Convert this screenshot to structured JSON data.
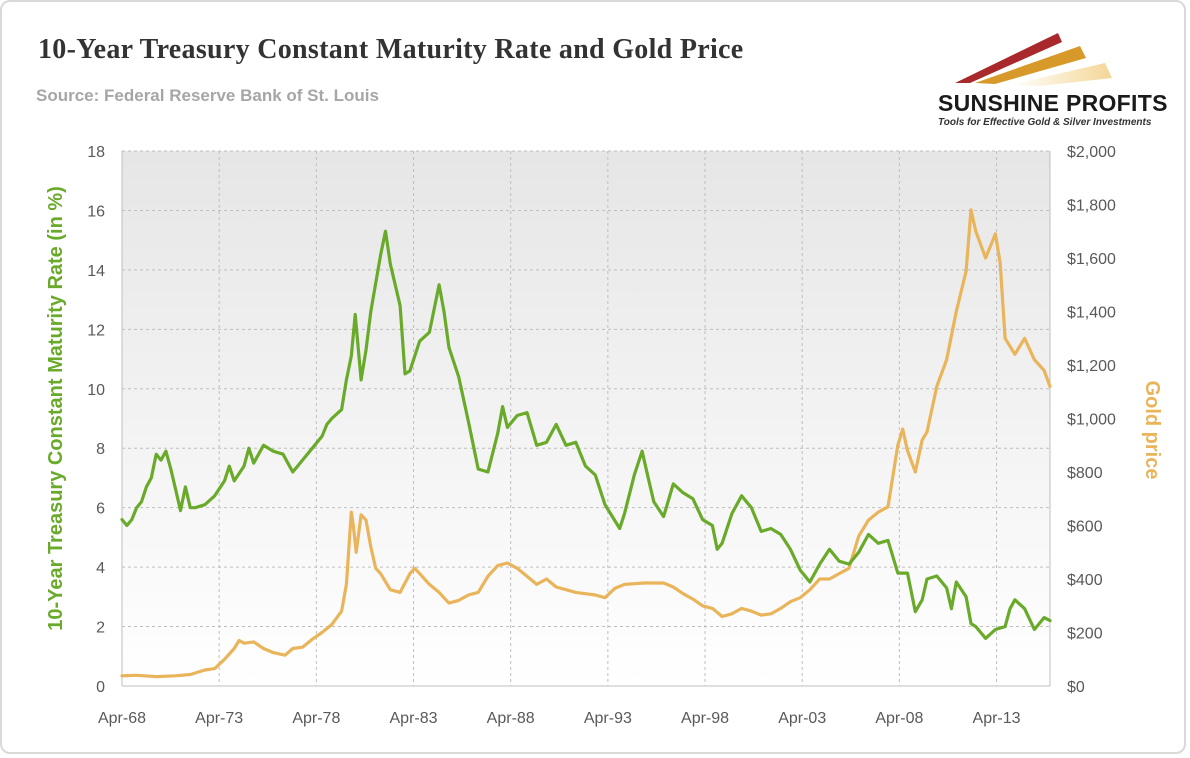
{
  "header": {
    "title": "10-Year Treasury Constant Maturity Rate and Gold Price",
    "subtitle": "Source: Federal Reserve Bank of St. Louis"
  },
  "logo": {
    "name": "SUNSHINE PROFITS",
    "tagline": "Tools for Effective Gold & Silver Investments",
    "colors": [
      "#a8282b",
      "#d79a2a",
      "#f2d28a"
    ]
  },
  "chart_data": {
    "type": "line",
    "title": "10-Year Treasury Constant Maturity Rate and Gold Price",
    "subtitle": "Source: Federal Reserve Bank of St. Louis",
    "x_tick_labels": [
      "Apr-68",
      "Apr-73",
      "Apr-78",
      "Apr-83",
      "Apr-88",
      "Apr-93",
      "Apr-98",
      "Apr-03",
      "Apr-08",
      "Apr-13"
    ],
    "x_range": [
      1968.25,
      2015.8
    ],
    "y_left": {
      "label": "10-Year Treasury Constant Maturity Rate (in %)",
      "range": [
        0,
        18
      ],
      "ticks": [
        "0",
        "2",
        "4",
        "6",
        "8",
        "10",
        "12",
        "14",
        "16",
        "18"
      ]
    },
    "y_right": {
      "label": "Gold price",
      "range": [
        0,
        2000
      ],
      "ticks": [
        "$0",
        "$200",
        "$400",
        "$600",
        "$800",
        "$1,000",
        "$1,200",
        "$1,400",
        "$1,600",
        "$1,800",
        "$2,000"
      ]
    },
    "grid": true,
    "plot_background": "gradient-gray",
    "series": [
      {
        "name": "10-Year Treasury Constant Maturity Rate (in %)",
        "axis": "left",
        "color": "#6aaa2a",
        "x": [
          1968.25,
          1968.5,
          1968.75,
          1969.0,
          1969.25,
          1969.5,
          1969.75,
          1970.0,
          1970.25,
          1970.5,
          1970.75,
          1971.0,
          1971.25,
          1971.5,
          1971.75,
          1972.0,
          1972.5,
          1973.0,
          1973.5,
          1973.75,
          1974.0,
          1974.5,
          1974.75,
          1975.0,
          1975.5,
          1976.0,
          1976.5,
          1977.0,
          1977.5,
          1978.0,
          1978.5,
          1978.75,
          1979.0,
          1979.5,
          1979.75,
          1980.0,
          1980.2,
          1980.5,
          1980.75,
          1981.0,
          1981.5,
          1981.75,
          1982.0,
          1982.25,
          1982.5,
          1982.75,
          1983.0,
          1983.5,
          1984.0,
          1984.5,
          1984.75,
          1985.0,
          1985.5,
          1986.0,
          1986.5,
          1987.0,
          1987.5,
          1987.75,
          1988.0,
          1988.5,
          1989.0,
          1989.5,
          1990.0,
          1990.5,
          1991.0,
          1991.5,
          1992.0,
          1992.5,
          1993.0,
          1993.75,
          1994.0,
          1994.5,
          1994.9,
          1995.25,
          1995.5,
          1996.0,
          1996.5,
          1997.0,
          1997.5,
          1998.0,
          1998.5,
          1998.75,
          1999.0,
          1999.5,
          2000.0,
          2000.5,
          2001.0,
          2001.5,
          2002.0,
          2002.5,
          2003.0,
          2003.5,
          2004.0,
          2004.5,
          2005.0,
          2005.5,
          2006.0,
          2006.5,
          2007.0,
          2007.5,
          2008.0,
          2008.5,
          2008.9,
          2009.25,
          2009.5,
          2010.0,
          2010.5,
          2010.75,
          2011.0,
          2011.5,
          2011.75,
          2012.0,
          2012.5,
          2013.0,
          2013.5,
          2013.75,
          2014.0,
          2014.5,
          2015.0,
          2015.5,
          2015.8
        ],
        "values": [
          5.6,
          5.4,
          5.6,
          6.0,
          6.2,
          6.7,
          7.0,
          7.8,
          7.6,
          7.9,
          7.3,
          6.6,
          5.9,
          6.7,
          6.0,
          6.0,
          6.1,
          6.4,
          6.9,
          7.4,
          6.9,
          7.4,
          8.0,
          7.5,
          8.1,
          7.9,
          7.8,
          7.2,
          7.6,
          8.0,
          8.4,
          8.8,
          9.0,
          9.3,
          10.3,
          11.1,
          12.5,
          10.3,
          11.3,
          12.6,
          14.5,
          15.3,
          14.2,
          13.5,
          12.8,
          10.5,
          10.6,
          11.6,
          11.9,
          13.5,
          12.6,
          11.4,
          10.4,
          8.9,
          7.3,
          7.2,
          8.5,
          9.4,
          8.7,
          9.1,
          9.2,
          8.1,
          8.2,
          8.8,
          8.1,
          8.2,
          7.4,
          7.1,
          6.1,
          5.3,
          5.8,
          7.1,
          7.9,
          6.9,
          6.2,
          5.7,
          6.8,
          6.5,
          6.3,
          5.6,
          5.4,
          4.6,
          4.8,
          5.8,
          6.4,
          6.0,
          5.2,
          5.3,
          5.1,
          4.6,
          3.9,
          3.5,
          4.1,
          4.6,
          4.2,
          4.1,
          4.5,
          5.1,
          4.8,
          4.9,
          3.8,
          3.8,
          2.5,
          2.9,
          3.6,
          3.7,
          3.3,
          2.6,
          3.5,
          3.0,
          2.1,
          2.0,
          1.6,
          1.9,
          2.0,
          2.6,
          2.9,
          2.6,
          1.9,
          2.3,
          2.2
        ],
        "note": "values approximate, read off the chart"
      },
      {
        "name": "Gold price",
        "axis": "right",
        "color": "#e9b45a",
        "x": [
          1968.25,
          1969.0,
          1970.0,
          1971.0,
          1971.75,
          1972.5,
          1973.0,
          1973.5,
          1974.0,
          1974.25,
          1974.5,
          1975.0,
          1975.5,
          1976.0,
          1976.6,
          1977.0,
          1977.5,
          1978.0,
          1978.5,
          1979.0,
          1979.5,
          1979.75,
          1980.0,
          1980.1,
          1980.25,
          1980.5,
          1980.75,
          1981.0,
          1981.25,
          1981.5,
          1982.0,
          1982.5,
          1983.0,
          1983.25,
          1983.5,
          1984.0,
          1984.5,
          1985.0,
          1985.5,
          1986.0,
          1986.5,
          1987.0,
          1987.5,
          1988.0,
          1988.5,
          1989.0,
          1989.5,
          1990.0,
          1990.5,
          1991.0,
          1991.5,
          1992.0,
          1992.5,
          1993.0,
          1993.5,
          1994.0,
          1995.0,
          1996.0,
          1996.5,
          1997.0,
          1997.5,
          1998.0,
          1998.5,
          1999.0,
          1999.5,
          2000.0,
          2000.5,
          2001.0,
          2001.5,
          2002.0,
          2002.5,
          2003.0,
          2003.5,
          2004.0,
          2004.5,
          2005.0,
          2005.5,
          2006.0,
          2006.5,
          2007.0,
          2007.5,
          2008.0,
          2008.25,
          2008.5,
          2008.9,
          2009.25,
          2009.5,
          2010.0,
          2010.5,
          2011.0,
          2011.5,
          2011.75,
          2012.0,
          2012.5,
          2013.0,
          2013.25,
          2013.5,
          2014.0,
          2014.5,
          2015.0,
          2015.5,
          2015.8
        ],
        "values": [
          38,
          40,
          35,
          38,
          43,
          60,
          65,
          100,
          140,
          170,
          160,
          165,
          140,
          125,
          115,
          140,
          145,
          175,
          200,
          230,
          280,
          380,
          650,
          600,
          500,
          640,
          620,
          520,
          440,
          420,
          360,
          350,
          420,
          440,
          420,
          380,
          350,
          310,
          320,
          340,
          350,
          410,
          450,
          460,
          440,
          410,
          380,
          400,
          370,
          360,
          350,
          345,
          340,
          330,
          365,
          380,
          385,
          385,
          370,
          345,
          325,
          300,
          290,
          260,
          270,
          290,
          280,
          265,
          270,
          290,
          315,
          330,
          360,
          400,
          400,
          420,
          440,
          560,
          620,
          650,
          670,
          900,
          960,
          880,
          800,
          920,
          950,
          1120,
          1220,
          1400,
          1550,
          1780,
          1700,
          1600,
          1690,
          1580,
          1300,
          1240,
          1300,
          1220,
          1180,
          1120
        ],
        "note": "values approximate, read off the chart"
      }
    ]
  }
}
